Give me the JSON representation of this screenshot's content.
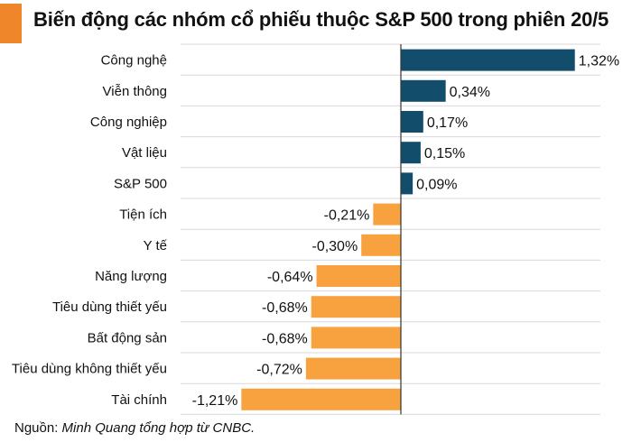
{
  "header": {
    "title": "Biến động các nhóm cổ phiếu thuộc S&P 500 trong phiên 20/5"
  },
  "footer": {
    "source_label": "Nguồn:",
    "source_text": "Minh Quang tổng hợp từ CNBC."
  },
  "colors": {
    "positive": "#124e6c",
    "negative": "#f7a23e",
    "accent": "#f0862a",
    "grid": "#d9d9d9",
    "axis": "#333333"
  },
  "chart_data": {
    "type": "bar",
    "orientation": "horizontal",
    "title": "Biến động các nhóm cổ phiếu thuộc S&P 500 trong phiên 20/5",
    "categories": [
      "Công nghệ",
      "Viễn thông",
      "Công nghiệp",
      "Vật liệu",
      "S&P 500",
      "Tiện ích",
      "Y tế",
      "Năng lượng",
      "Tiêu dùng thiết yếu",
      "Bất động sản",
      "Tiêu dùng không thiết yếu",
      "Tài chính"
    ],
    "values": [
      1.32,
      0.34,
      0.17,
      0.15,
      0.09,
      -0.21,
      -0.3,
      -0.64,
      -0.68,
      -0.68,
      -0.72,
      -1.21
    ],
    "data_labels": [
      "1,32%",
      "0,34%",
      "0,17%",
      "0,15%",
      "0,09%",
      "-0,21%",
      "-0,30%",
      "-0,64%",
      "-0,68%",
      "-0,68%",
      "-0,72%",
      "-1,21%"
    ],
    "xlim": [
      -1.52,
      1.52
    ],
    "grid": true,
    "xlabel": "",
    "ylabel": ""
  }
}
